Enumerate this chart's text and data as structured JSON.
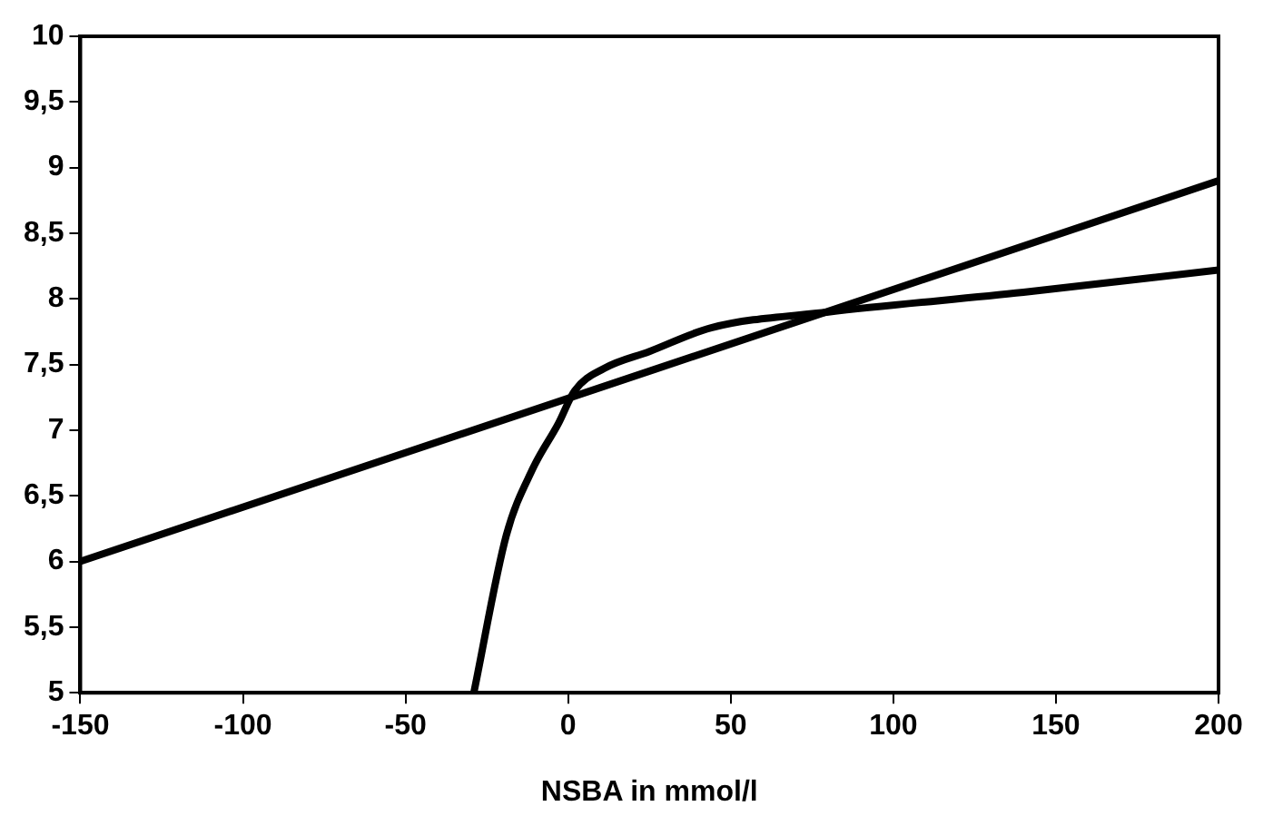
{
  "chart_data": {
    "type": "line",
    "xlabel": "NSBA in mmol/l",
    "xlim": [
      -150,
      200
    ],
    "xticks": [
      -150,
      -100,
      -50,
      0,
      50,
      100,
      150,
      200
    ],
    "ylim": [
      5,
      10
    ],
    "yticks": [
      5,
      {
        "value": 5.5,
        "label": "5,5"
      },
      6,
      {
        "value": 6.5,
        "label": "6,5"
      },
      7,
      {
        "value": 7.5,
        "label": "7,5"
      },
      8,
      {
        "value": 8.5,
        "label": "8,5"
      },
      9,
      {
        "value": 9.5,
        "label": "9,5"
      },
      10
    ],
    "grid": false,
    "legend": false,
    "marker": "none",
    "line_style": "solid",
    "series": [
      {
        "color": "#000000",
        "x": [
          -150,
          200
        ],
        "values": [
          6.0,
          8.9
        ]
      },
      {
        "color": "#000000",
        "x": [
          -29,
          -19,
          -11,
          -3,
          2,
          11,
          25,
          44,
          80,
          140,
          200
        ],
        "values": [
          5,
          6.2,
          6.7,
          7.05,
          7.3,
          7.47,
          7.6,
          7.78,
          7.9,
          8.05,
          8.22
        ]
      }
    ]
  }
}
